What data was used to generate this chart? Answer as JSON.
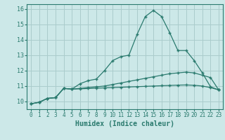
{
  "xlabel": "Humidex (Indice chaleur)",
  "x": [
    0,
    1,
    2,
    3,
    4,
    5,
    6,
    7,
    8,
    9,
    10,
    11,
    12,
    13,
    14,
    15,
    16,
    17,
    18,
    19,
    20,
    21,
    22,
    23
  ],
  "line1": [
    9.85,
    9.95,
    10.2,
    10.25,
    10.85,
    10.8,
    11.15,
    11.35,
    11.45,
    12.0,
    12.65,
    12.9,
    13.0,
    14.35,
    15.5,
    15.9,
    15.5,
    14.45,
    13.3,
    13.3,
    12.65,
    11.85,
    10.95,
    10.75
  ],
  "line2": [
    9.85,
    9.95,
    10.2,
    10.25,
    10.85,
    10.8,
    10.85,
    10.9,
    10.95,
    11.0,
    11.1,
    11.2,
    11.3,
    11.4,
    11.5,
    11.6,
    11.7,
    11.8,
    11.85,
    11.9,
    11.85,
    11.7,
    11.55,
    10.75
  ],
  "line3": [
    9.85,
    9.95,
    10.2,
    10.25,
    10.85,
    10.8,
    10.82,
    10.84,
    10.86,
    10.88,
    10.9,
    10.92,
    10.94,
    10.96,
    10.98,
    11.0,
    11.02,
    11.04,
    11.06,
    11.07,
    11.05,
    11.0,
    10.9,
    10.75
  ],
  "line_color": "#2a7a6e",
  "bg_color": "#cce8e8",
  "grid_color": "#aacccc",
  "ylim": [
    9.5,
    16.3
  ],
  "xlim": [
    -0.5,
    23.5
  ],
  "yticks": [
    10,
    11,
    12,
    13,
    14,
    15,
    16
  ],
  "xticks": [
    0,
    1,
    2,
    3,
    4,
    5,
    6,
    7,
    8,
    9,
    10,
    11,
    12,
    13,
    14,
    15,
    16,
    17,
    18,
    19,
    20,
    21,
    22,
    23
  ]
}
